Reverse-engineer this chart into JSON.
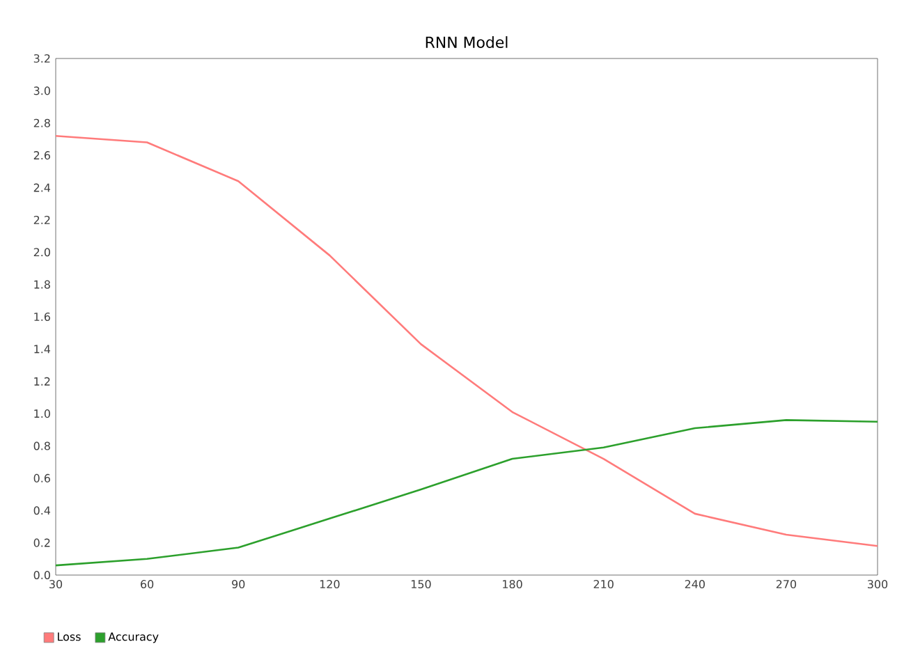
{
  "chart_data": {
    "type": "line",
    "title": "RNN Model",
    "x": [
      30,
      60,
      90,
      120,
      150,
      180,
      210,
      240,
      270,
      300
    ],
    "series": [
      {
        "name": "Loss",
        "color": "#ff7b7b",
        "values": [
          2.72,
          2.68,
          2.44,
          1.98,
          1.43,
          1.01,
          0.72,
          0.38,
          0.25,
          0.18
        ]
      },
      {
        "name": "Accuracy",
        "color": "#2ca02c",
        "values": [
          0.06,
          0.1,
          0.17,
          0.35,
          0.53,
          0.72,
          0.79,
          0.91,
          0.96,
          0.95
        ]
      }
    ],
    "xlim": [
      30,
      300
    ],
    "xticks": [
      30,
      60,
      90,
      120,
      150,
      180,
      210,
      240,
      270,
      300
    ],
    "ylim": [
      0,
      3.2
    ],
    "yticks": [
      {
        "value": 0,
        "label": "0.0"
      },
      {
        "value": 0.2,
        "label": "0.2"
      },
      {
        "value": 0.4,
        "label": "0.4"
      },
      {
        "value": 0.6,
        "label": "0.6"
      },
      {
        "value": 0.8,
        "label": "0.8"
      },
      {
        "value": 1,
        "label": "1.0"
      },
      {
        "value": 1.2,
        "label": "1.2"
      },
      {
        "value": 1.4,
        "label": "1.4"
      },
      {
        "value": 1.6,
        "label": "1.6"
      },
      {
        "value": 1.8,
        "label": "1.8"
      },
      {
        "value": 2,
        "label": "2.0"
      },
      {
        "value": 2.2,
        "label": "2.2"
      },
      {
        "value": 2.4,
        "label": "2.4"
      },
      {
        "value": 2.6,
        "label": "2.6"
      },
      {
        "value": 2.8,
        "label": "2.8"
      },
      {
        "value": 3,
        "label": "3.0"
      },
      {
        "value": 3.2,
        "label": "3.2"
      }
    ],
    "legend": "bottom left",
    "grid": false,
    "marker": "none",
    "line_style": "solid"
  }
}
